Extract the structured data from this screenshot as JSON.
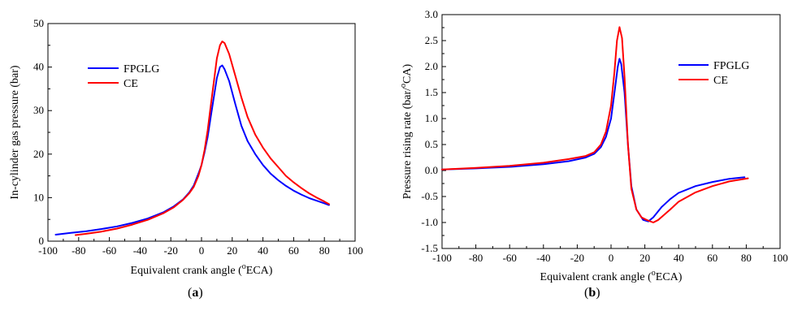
{
  "chart_data": [
    {
      "type": "line",
      "panel": "a",
      "caption": "a",
      "xlabel": "Equivalent crank angle (°ECA)",
      "xlabel_parts": [
        "Equivalent crank angle (",
        "o",
        "ECA)"
      ],
      "ylabel": "In-cylinder gas pressure (bar)",
      "xlim": [
        -100,
        100
      ],
      "ylim": [
        0,
        50
      ],
      "x_ticks": [
        -100,
        -80,
        -60,
        -40,
        -20,
        0,
        20,
        40,
        60,
        80,
        100
      ],
      "y_ticks": [
        0,
        10,
        20,
        30,
        40,
        50
      ],
      "legend_position": "upper-left",
      "series": [
        {
          "name": "FPGLG",
          "color": "#0000ff",
          "points": [
            [
              -95,
              1.5
            ],
            [
              -85,
              1.9
            ],
            [
              -75,
              2.3
            ],
            [
              -65,
              2.8
            ],
            [
              -55,
              3.4
            ],
            [
              -45,
              4.2
            ],
            [
              -35,
              5.2
            ],
            [
              -25,
              6.6
            ],
            [
              -18,
              8.0
            ],
            [
              -12,
              9.6
            ],
            [
              -8,
              11.2
            ],
            [
              -5,
              12.8
            ],
            [
              -2,
              15.5
            ],
            [
              0,
              17.5
            ],
            [
              2,
              20.5
            ],
            [
              4,
              24.0
            ],
            [
              6,
              28.5
            ],
            [
              8,
              33.0
            ],
            [
              10,
              37.5
            ],
            [
              12,
              40.0
            ],
            [
              13.5,
              40.4
            ],
            [
              15,
              39.5
            ],
            [
              18,
              36.8
            ],
            [
              22,
              31.5
            ],
            [
              26,
              26.5
            ],
            [
              30,
              23.0
            ],
            [
              35,
              20.0
            ],
            [
              40,
              17.5
            ],
            [
              45,
              15.5
            ],
            [
              50,
              14.0
            ],
            [
              55,
              12.7
            ],
            [
              60,
              11.6
            ],
            [
              65,
              10.7
            ],
            [
              70,
              9.9
            ],
            [
              75,
              9.3
            ],
            [
              80,
              8.7
            ],
            [
              83,
              8.3
            ]
          ]
        },
        {
          "name": "CE",
          "color": "#ff0000",
          "points": [
            [
              -82,
              1.4
            ],
            [
              -75,
              1.7
            ],
            [
              -65,
              2.2
            ],
            [
              -55,
              2.9
            ],
            [
              -45,
              3.8
            ],
            [
              -35,
              4.9
            ],
            [
              -25,
              6.4
            ],
            [
              -18,
              7.8
            ],
            [
              -12,
              9.5
            ],
            [
              -8,
              11.0
            ],
            [
              -5,
              12.5
            ],
            [
              -2,
              15.0
            ],
            [
              0,
              17.5
            ],
            [
              2,
              21.0
            ],
            [
              4,
              25.5
            ],
            [
              6,
              31.0
            ],
            [
              8,
              36.5
            ],
            [
              10,
              42.0
            ],
            [
              12,
              45.0
            ],
            [
              13.5,
              45.9
            ],
            [
              15,
              45.5
            ],
            [
              18,
              43.0
            ],
            [
              22,
              38.0
            ],
            [
              26,
              33.0
            ],
            [
              30,
              28.5
            ],
            [
              35,
              24.5
            ],
            [
              40,
              21.5
            ],
            [
              45,
              19.0
            ],
            [
              50,
              17.0
            ],
            [
              55,
              15.0
            ],
            [
              60,
              13.5
            ],
            [
              65,
              12.2
            ],
            [
              70,
              11.0
            ],
            [
              75,
              10.0
            ],
            [
              80,
              9.1
            ],
            [
              83,
              8.5
            ]
          ]
        }
      ]
    },
    {
      "type": "line",
      "panel": "b",
      "caption": "b",
      "xlabel": "Equivalent crank angle (°ECA)",
      "xlabel_parts": [
        "Equivalent crank angle (",
        "o",
        "ECA)"
      ],
      "ylabel": "Pressure rising rate (bar/°CA)",
      "ylabel_parts": [
        "Pressure rising rate (bar/",
        "o",
        "CA)"
      ],
      "xlim": [
        -100,
        100
      ],
      "ylim": [
        -1.5,
        3.0
      ],
      "x_ticks": [
        -100,
        -80,
        -60,
        -40,
        -20,
        0,
        20,
        40,
        60,
        80,
        100
      ],
      "y_ticks": [
        -1.5,
        -1.0,
        -0.5,
        0.0,
        0.5,
        1.0,
        1.5,
        2.0,
        2.5,
        3.0
      ],
      "legend_position": "right",
      "series": [
        {
          "name": "FPGLG",
          "color": "#0000ff",
          "points": [
            [
              -100,
              0.02
            ],
            [
              -80,
              0.04
            ],
            [
              -60,
              0.07
            ],
            [
              -40,
              0.12
            ],
            [
              -25,
              0.18
            ],
            [
              -15,
              0.25
            ],
            [
              -10,
              0.32
            ],
            [
              -6,
              0.45
            ],
            [
              -3,
              0.65
            ],
            [
              0,
              1.0
            ],
            [
              2,
              1.5
            ],
            [
              4,
              2.0
            ],
            [
              5,
              2.15
            ],
            [
              6,
              2.05
            ],
            [
              8,
              1.5
            ],
            [
              10,
              0.5
            ],
            [
              12,
              -0.3
            ],
            [
              15,
              -0.75
            ],
            [
              19,
              -0.95
            ],
            [
              22,
              -0.98
            ],
            [
              25,
              -0.9
            ],
            [
              30,
              -0.7
            ],
            [
              35,
              -0.55
            ],
            [
              40,
              -0.43
            ],
            [
              50,
              -0.3
            ],
            [
              60,
              -0.22
            ],
            [
              70,
              -0.16
            ],
            [
              79,
              -0.13
            ]
          ]
        },
        {
          "name": "CE",
          "color": "#ff0000",
          "points": [
            [
              -100,
              0.02
            ],
            [
              -80,
              0.05
            ],
            [
              -60,
              0.09
            ],
            [
              -40,
              0.15
            ],
            [
              -25,
              0.22
            ],
            [
              -15,
              0.28
            ],
            [
              -10,
              0.35
            ],
            [
              -6,
              0.5
            ],
            [
              -3,
              0.75
            ],
            [
              0,
              1.25
            ],
            [
              2,
              1.9
            ],
            [
              3.5,
              2.5
            ],
            [
              5,
              2.76
            ],
            [
              6.5,
              2.55
            ],
            [
              8,
              1.8
            ],
            [
              10,
              0.5
            ],
            [
              12,
              -0.35
            ],
            [
              15,
              -0.75
            ],
            [
              18,
              -0.9
            ],
            [
              21,
              -0.95
            ],
            [
              25,
              -1.0
            ],
            [
              28,
              -0.95
            ],
            [
              35,
              -0.75
            ],
            [
              40,
              -0.6
            ],
            [
              50,
              -0.42
            ],
            [
              60,
              -0.3
            ],
            [
              70,
              -0.21
            ],
            [
              81,
              -0.15
            ]
          ]
        }
      ]
    }
  ]
}
